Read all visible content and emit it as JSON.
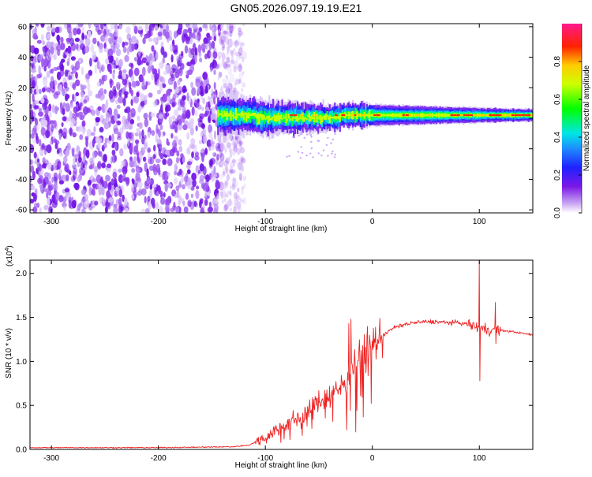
{
  "title": "GN05.2026.097.19.19.E21",
  "chart_data": [
    {
      "type": "heatmap",
      "name": "spectrogram",
      "xlabel": "Height of straight line (km)",
      "ylabel": "Frequency (Hz)",
      "xlim": [
        -320,
        150
      ],
      "ylim": [
        -62,
        62
      ],
      "x_ticks": [
        -300,
        -200,
        -100,
        0,
        100
      ],
      "x_tick_labels": [
        "-300",
        "-200",
        "-100",
        "0",
        "100"
      ],
      "y_ticks": [
        -60,
        -40,
        -20,
        0,
        20,
        40,
        60
      ],
      "y_tick_labels": [
        "-60",
        "-40",
        "-20",
        "0",
        "20",
        "40",
        "60"
      ],
      "noise_region": [
        -320,
        -128
      ],
      "signal_region": [
        -145,
        150
      ],
      "signal_center_freq_hz": 2,
      "colorbar": {
        "label": "Normalized spectral amplitude",
        "range": [
          0.0,
          1.0
        ],
        "ticks": [
          0.0,
          0.2,
          0.4,
          0.6,
          0.8
        ],
        "tick_labels": [
          "0.0",
          "0.2",
          "0.4",
          "0.6",
          "0.8"
        ]
      }
    },
    {
      "type": "line",
      "name": "snr",
      "color": "#ee2222",
      "xlabel": "Height of straight line (km)",
      "ylabel": "SNR (10 * v/v)",
      "multiplier_label": "(x10",
      "multiplier_exponent": "4",
      "multiplier_close": ")",
      "xlim": [
        -320,
        150
      ],
      "ylim": [
        0,
        2.15
      ],
      "x_ticks": [
        -300,
        -200,
        -100,
        0,
        100
      ],
      "x_tick_labels": [
        "-300",
        "-200",
        "-100",
        "0",
        "100"
      ],
      "y_ticks": [
        0.0,
        0.5,
        1.0,
        1.5,
        2.0
      ],
      "y_tick_labels": [
        "0.0",
        "0.5",
        "1.0",
        "1.5",
        "2.0"
      ],
      "series": [
        {
          "name": "SNR",
          "x": [
            -320,
            -200,
            -130,
            -115,
            -100,
            -90,
            -80,
            -70,
            -60,
            -50,
            -40,
            -30,
            -25,
            -20,
            -15,
            -10,
            -5,
            0,
            10,
            20,
            30,
            40,
            50,
            60,
            70,
            80,
            90,
            95,
            100,
            105,
            110,
            115,
            120,
            130,
            140,
            150
          ],
          "y": [
            0.02,
            0.02,
            0.03,
            0.05,
            0.14,
            0.22,
            0.3,
            0.35,
            0.42,
            0.55,
            0.62,
            0.7,
            0.78,
            0.95,
            1.0,
            1.05,
            1.1,
            1.18,
            1.3,
            1.38,
            1.42,
            1.44,
            1.45,
            1.45,
            1.44,
            1.44,
            1.42,
            1.4,
            1.38,
            1.37,
            1.36,
            1.36,
            1.35,
            1.34,
            1.32,
            1.3
          ],
          "spikes": [
            {
              "x": -22,
              "y": 1.43
            },
            {
              "x": -20,
              "y": 1.48
            },
            {
              "x": -10,
              "y": 1.05
            },
            {
              "x": 100,
              "y": 2.15
            },
            {
              "x": 100.5,
              "y": 0.78
            },
            {
              "x": 115,
              "y": 1.67
            },
            {
              "x": 115.5,
              "y": 1.2
            }
          ]
        }
      ]
    }
  ]
}
